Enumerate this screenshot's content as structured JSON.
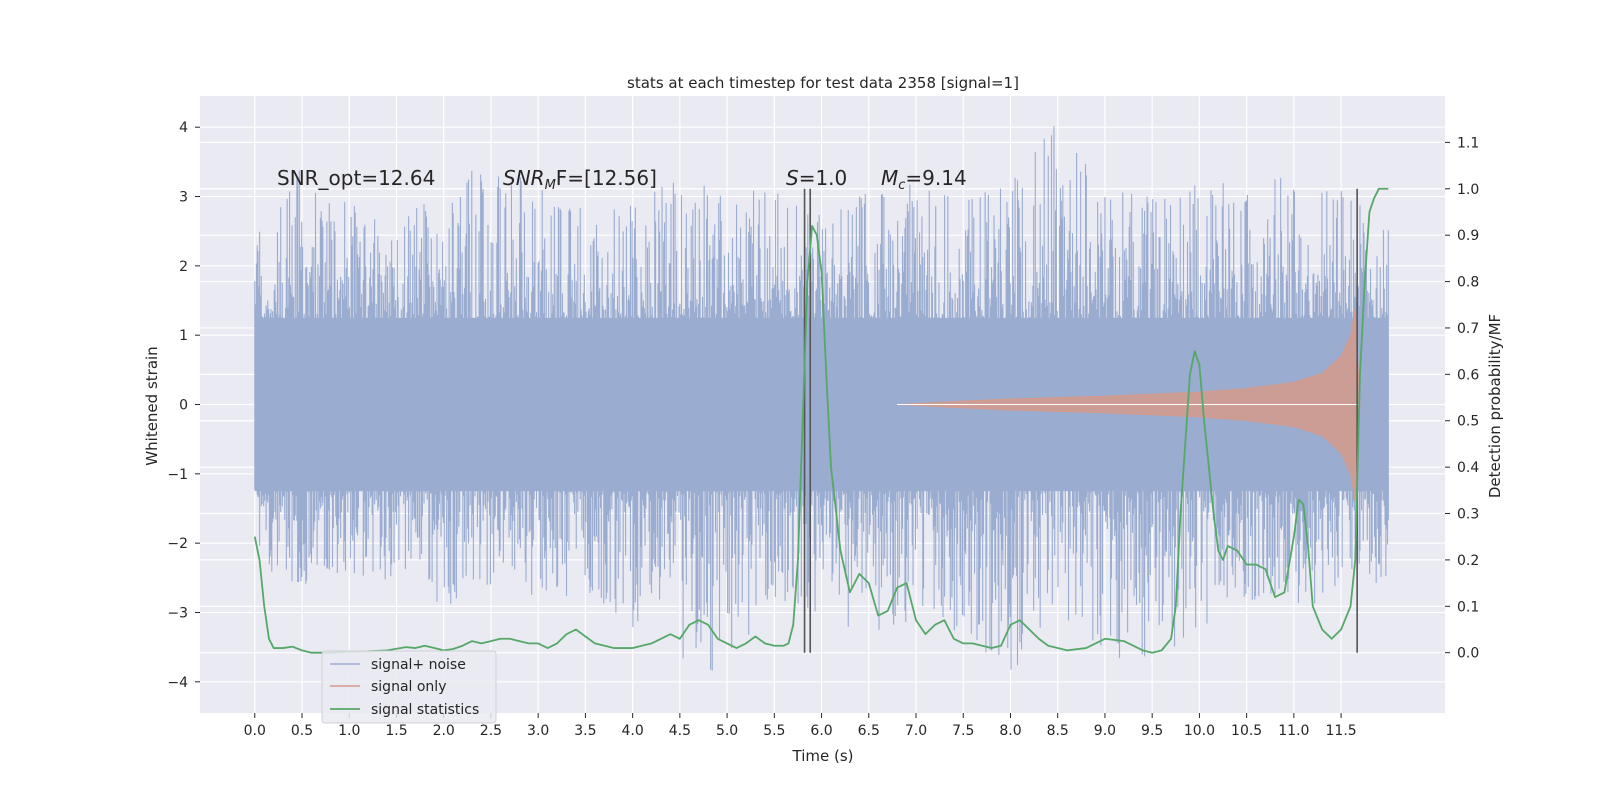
{
  "chart_data": {
    "type": "line",
    "title": "stats at each timestep for test data 2358 [signal=1]",
    "xlabel": "Time (s)",
    "ylabel_left": "Whitened strain",
    "ylabel_right": "Detection probability/MF",
    "xlim": [
      -0.58,
      12.6
    ],
    "ylim_left": [
      -4.45,
      4.45
    ],
    "ylim_right": [
      -0.13,
      1.2
    ],
    "x_ticks": [
      "0.0",
      "0.5",
      "1.0",
      "1.5",
      "2.0",
      "2.5",
      "3.0",
      "3.5",
      "4.0",
      "4.5",
      "5.0",
      "5.5",
      "6.0",
      "6.5",
      "7.0",
      "7.5",
      "8.0",
      "8.5",
      "9.0",
      "9.5",
      "10.0",
      "10.5",
      "11.0",
      "11.5"
    ],
    "y_ticks_left": [
      "4",
      "3",
      "2",
      "1",
      "0",
      "−1",
      "−2",
      "−3",
      "−4"
    ],
    "y_ticks_right": [
      "1.1",
      "1.0",
      "0.9",
      "0.8",
      "0.7",
      "0.6",
      "0.5",
      "0.4",
      "0.3",
      "0.2",
      "0.1",
      "0.0"
    ],
    "annotations": {
      "snr_opt": "SNR_opt=12.64",
      "snr_mf_name": "SNR",
      "snr_mf_sub": "M",
      "snr_mf_rest": "F=[12.56]",
      "s_name": "S",
      "s_rest": "=1.0",
      "mc_name": "M",
      "mc_sub": "c",
      "mc_rest": "=9.14"
    },
    "vertical_lines_x": [
      5.82,
      5.88,
      11.67
    ],
    "vertical_lines_range_right": [
      0.0,
      1.0
    ],
    "legend": {
      "position": "lower-left",
      "items": [
        "signal+ noise",
        "signal only",
        "signal statistics"
      ]
    },
    "colors": {
      "background": "#eaeaf2",
      "grid": "#ffffff",
      "noise": "#9aacd0",
      "signal": "#d59a8a",
      "stat": "#55a868",
      "vline": "#555555"
    },
    "series": [
      {
        "name": "signal+ noise",
        "axis": "left",
        "t_range": [
          0.0,
          12.0
        ],
        "envelope": {
          "x": [
            0.0,
            0.5,
            1.0,
            1.5,
            2.0,
            2.5,
            3.0,
            3.5,
            4.0,
            4.5,
            5.0,
            5.5,
            6.0,
            6.5,
            7.0,
            7.5,
            8.0,
            8.5,
            9.0,
            9.5,
            10.0,
            10.5,
            11.0,
            11.5,
            12.0
          ],
          "upper": [
            2.5,
            3.5,
            2.9,
            2.6,
            3.2,
            3.5,
            3.3,
            2.8,
            2.9,
            3.4,
            3.2,
            3.1,
            2.8,
            3.1,
            3.3,
            3.0,
            3.2,
            4.1,
            3.1,
            3.0,
            3.2,
            3.3,
            3.4,
            3.1,
            2.6
          ],
          "lower": [
            -2.4,
            -2.6,
            -2.5,
            -2.6,
            -3.0,
            -2.7,
            -2.9,
            -2.7,
            -3.3,
            -3.7,
            -4.0,
            -2.9,
            -3.0,
            -3.4,
            -3.1,
            -3.3,
            -3.9,
            -3.0,
            -3.7,
            -3.8,
            -3.4,
            -2.8,
            -3.2,
            -2.6,
            -2.6
          ]
        }
      },
      {
        "name": "signal only",
        "axis": "left",
        "x": [
          6.8,
          7.5,
          8.0,
          8.5,
          9.0,
          9.5,
          10.0,
          10.5,
          11.0,
          11.3,
          11.5,
          11.6,
          11.65,
          11.7
        ],
        "amplitude": [
          0.0,
          0.05,
          0.08,
          0.1,
          0.12,
          0.15,
          0.18,
          0.23,
          0.32,
          0.45,
          0.7,
          1.0,
          1.4,
          0.0
        ]
      },
      {
        "name": "signal statistics",
        "axis": "right",
        "x": [
          0.0,
          0.05,
          0.1,
          0.15,
          0.2,
          0.3,
          0.4,
          0.5,
          0.6,
          0.8,
          1.0,
          1.2,
          1.4,
          1.6,
          1.7,
          1.8,
          1.9,
          2.0,
          2.1,
          2.2,
          2.3,
          2.4,
          2.5,
          2.6,
          2.7,
          2.8,
          2.9,
          3.0,
          3.1,
          3.2,
          3.3,
          3.4,
          3.6,
          3.8,
          4.0,
          4.2,
          4.3,
          4.4,
          4.5,
          4.6,
          4.7,
          4.8,
          4.9,
          5.0,
          5.1,
          5.2,
          5.3,
          5.4,
          5.5,
          5.6,
          5.65,
          5.7,
          5.75,
          5.8,
          5.85,
          5.9,
          5.95,
          6.0,
          6.05,
          6.1,
          6.2,
          6.3,
          6.4,
          6.5,
          6.6,
          6.7,
          6.8,
          6.9,
          7.0,
          7.1,
          7.2,
          7.3,
          7.4,
          7.5,
          7.6,
          7.7,
          7.8,
          7.9,
          8.0,
          8.1,
          8.2,
          8.3,
          8.4,
          8.5,
          8.6,
          8.8,
          9.0,
          9.2,
          9.4,
          9.5,
          9.6,
          9.7,
          9.75,
          9.8,
          9.85,
          9.9,
          9.95,
          10.0,
          10.05,
          10.1,
          10.15,
          10.2,
          10.25,
          10.3,
          10.4,
          10.5,
          10.6,
          10.7,
          10.8,
          10.9,
          11.0,
          11.05,
          11.1,
          11.15,
          11.2,
          11.3,
          11.4,
          11.5,
          11.6,
          11.65,
          11.7,
          11.75,
          11.8,
          11.85,
          11.9,
          12.0
        ],
        "values": [
          0.25,
          0.2,
          0.1,
          0.03,
          0.01,
          0.01,
          0.013,
          0.005,
          0.0,
          0.0,
          0.002,
          0.003,
          0.005,
          0.012,
          0.01,
          0.015,
          0.01,
          0.005,
          0.008,
          0.015,
          0.025,
          0.02,
          0.025,
          0.03,
          0.03,
          0.025,
          0.02,
          0.02,
          0.01,
          0.02,
          0.04,
          0.05,
          0.02,
          0.01,
          0.01,
          0.02,
          0.03,
          0.04,
          0.03,
          0.06,
          0.07,
          0.06,
          0.03,
          0.02,
          0.01,
          0.02,
          0.035,
          0.02,
          0.015,
          0.015,
          0.02,
          0.06,
          0.2,
          0.5,
          0.8,
          0.92,
          0.9,
          0.82,
          0.6,
          0.4,
          0.22,
          0.13,
          0.17,
          0.15,
          0.08,
          0.09,
          0.14,
          0.15,
          0.07,
          0.04,
          0.06,
          0.07,
          0.03,
          0.02,
          0.02,
          0.015,
          0.01,
          0.015,
          0.06,
          0.07,
          0.05,
          0.03,
          0.015,
          0.01,
          0.005,
          0.01,
          0.03,
          0.025,
          0.005,
          0.0,
          0.005,
          0.03,
          0.1,
          0.3,
          0.45,
          0.6,
          0.65,
          0.62,
          0.5,
          0.4,
          0.3,
          0.22,
          0.2,
          0.23,
          0.22,
          0.19,
          0.19,
          0.18,
          0.12,
          0.13,
          0.25,
          0.33,
          0.32,
          0.23,
          0.1,
          0.05,
          0.03,
          0.05,
          0.1,
          0.2,
          0.6,
          0.8,
          0.95,
          0.98,
          1.0,
          1.0
        ]
      }
    ]
  }
}
